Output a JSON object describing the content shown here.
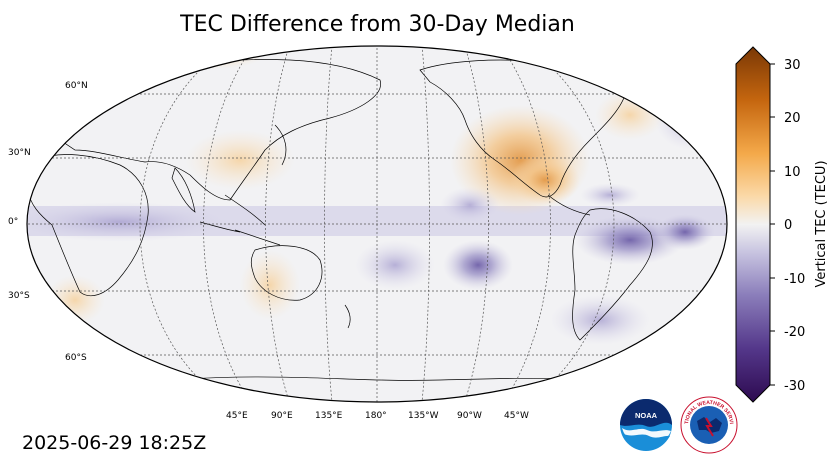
{
  "title": "TEC Difference from 30-Day Median",
  "timestamp": "2025-06-29 18:25Z",
  "lat_labels": [
    "60°N",
    "30°N",
    "0°",
    "30°S",
    "60°S"
  ],
  "lon_labels": [
    "45°E",
    "90°E",
    "135°E",
    "180°",
    "135°W",
    "90°W",
    "45°W"
  ],
  "colorbar": {
    "label": "Vertical TEC (TECU)",
    "min": -30,
    "max": 30,
    "ticks": [
      "30",
      "20",
      "10",
      "0",
      "-10",
      "-20",
      "-30"
    ],
    "neg_color": "#3b0f70",
    "pos_color": "#7f3b08",
    "mid_color": "#f2f2f2"
  },
  "logos": {
    "noaa": "NOAA",
    "nws": "NATIONAL WEATHER SERVICE"
  },
  "colors": {
    "background": "#f2f2f4",
    "positive_anomaly": "#f7c98a",
    "negative_anomaly": "#b9b5d8"
  }
}
